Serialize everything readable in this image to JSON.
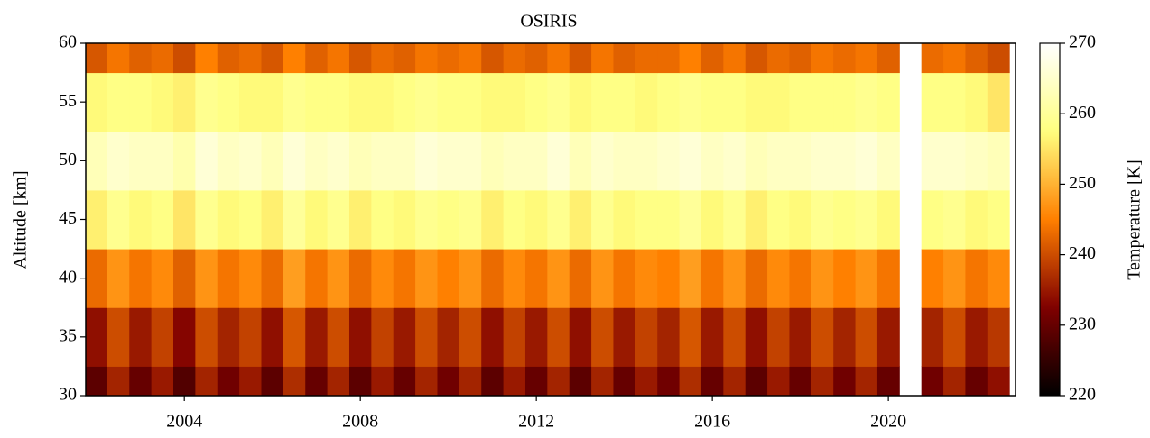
{
  "chart_data": {
    "type": "heatmap",
    "title": "OSIRIS",
    "ylabel": "Altitude [km]",
    "colorbar_label": "Temperature [K]",
    "colormap": "afmhot",
    "x": [
      2002.0,
      2002.5,
      2003.0,
      2003.5,
      2004.0,
      2004.5,
      2005.0,
      2005.5,
      2006.0,
      2006.5,
      2007.0,
      2007.5,
      2008.0,
      2008.5,
      2009.0,
      2009.5,
      2010.0,
      2010.5,
      2011.0,
      2011.5,
      2012.0,
      2012.5,
      2013.0,
      2013.5,
      2014.0,
      2014.5,
      2015.0,
      2015.5,
      2016.0,
      2016.5,
      2017.0,
      2017.5,
      2018.0,
      2018.5,
      2019.0,
      2019.5,
      2020.0,
      2020.5,
      2021.0,
      2021.5,
      2022.0,
      2022.5
    ],
    "y": [
      30,
      35,
      40,
      45,
      50,
      55,
      60
    ],
    "z": [
      [
        229,
        236,
        230,
        235,
        228,
        236,
        231,
        235,
        229,
        237,
        230,
        236,
        229,
        235,
        230,
        236,
        231,
        236,
        229,
        235,
        230,
        236,
        229,
        236,
        230,
        235,
        231,
        237,
        230,
        236,
        229,
        235,
        230,
        236,
        231,
        236,
        230,
        null,
        231,
        236,
        230,
        234
      ],
      [
        234,
        240,
        235,
        239,
        233,
        240,
        236,
        239,
        234,
        241,
        235,
        240,
        234,
        239,
        235,
        240,
        236,
        240,
        234,
        239,
        235,
        240,
        234,
        240,
        235,
        239,
        236,
        241,
        235,
        240,
        234,
        239,
        235,
        240,
        236,
        240,
        235,
        null,
        236,
        240,
        235,
        238
      ],
      [
        243,
        247,
        244,
        246,
        242,
        247,
        244,
        246,
        243,
        248,
        244,
        247,
        243,
        246,
        244,
        247,
        245,
        247,
        243,
        246,
        244,
        247,
        243,
        247,
        244,
        246,
        245,
        248,
        244,
        247,
        243,
        246,
        244,
        247,
        245,
        247,
        244,
        null,
        245,
        247,
        244,
        246
      ],
      [
        256,
        259,
        257,
        258,
        255,
        259,
        257,
        258,
        256,
        260,
        257,
        259,
        256,
        258,
        257,
        259,
        258,
        259,
        256,
        258,
        257,
        259,
        256,
        259,
        257,
        258,
        258,
        260,
        257,
        259,
        256,
        258,
        257,
        259,
        258,
        259,
        257,
        null,
        258,
        259,
        257,
        258
      ],
      [
        263,
        265,
        264,
        264,
        262,
        266,
        264,
        265,
        263,
        266,
        264,
        265,
        263,
        264,
        264,
        266,
        265,
        265,
        263,
        264,
        264,
        266,
        263,
        265,
        264,
        264,
        265,
        266,
        264,
        265,
        263,
        264,
        264,
        265,
        265,
        266,
        264,
        null,
        265,
        265,
        264,
        263
      ],
      [
        257,
        258,
        258,
        257,
        256,
        259,
        258,
        257,
        257,
        259,
        258,
        258,
        257,
        257,
        258,
        259,
        258,
        258,
        257,
        257,
        258,
        259,
        257,
        258,
        258,
        257,
        258,
        259,
        258,
        258,
        257,
        257,
        258,
        258,
        258,
        259,
        258,
        null,
        258,
        258,
        257,
        255
      ],
      [
        241,
        244,
        242,
        243,
        240,
        245,
        242,
        243,
        241,
        245,
        242,
        244,
        241,
        243,
        242,
        244,
        243,
        244,
        241,
        243,
        242,
        244,
        241,
        244,
        242,
        243,
        243,
        245,
        242,
        244,
        241,
        243,
        242,
        244,
        243,
        244,
        242,
        null,
        243,
        244,
        242,
        240
      ]
    ],
    "xlim": [
      2001.76,
      2022.89
    ],
    "xticks": [
      2004,
      2008,
      2012,
      2016,
      2020
    ],
    "ylim": [
      30,
      60
    ],
    "yticks": [
      30,
      35,
      40,
      45,
      50,
      55,
      60
    ],
    "clim": [
      220,
      270
    ],
    "cticks": [
      220,
      230,
      240,
      250,
      260,
      270
    ]
  }
}
